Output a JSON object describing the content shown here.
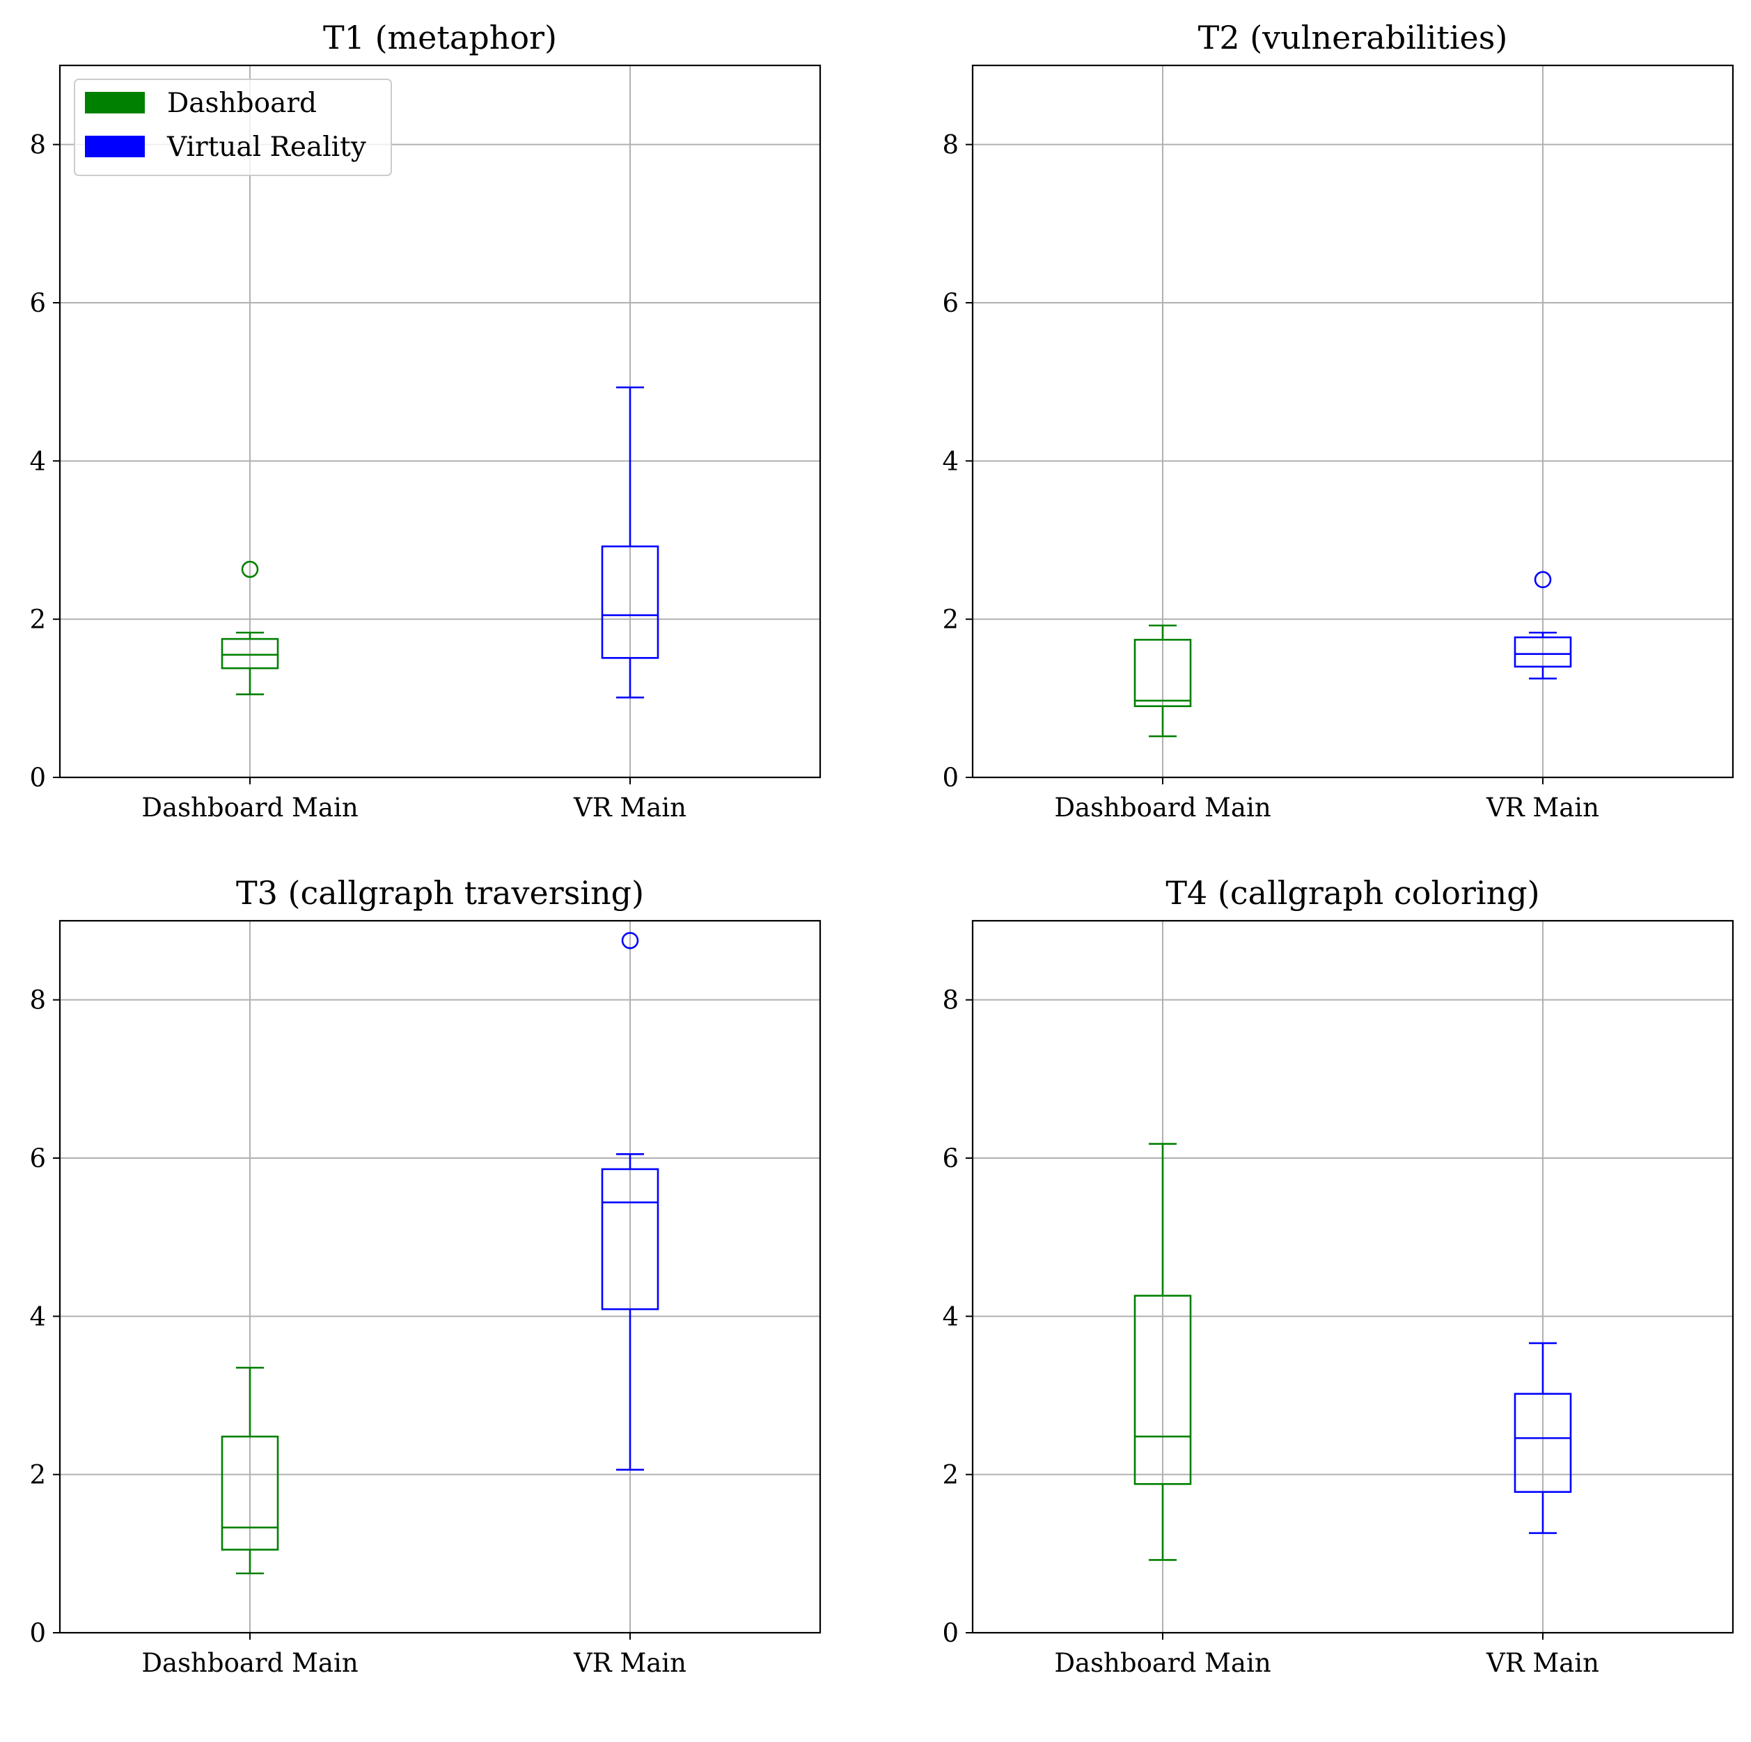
{
  "colors": {
    "dashboard": "#008000",
    "vr": "#0000ff",
    "grid": "#b0b0b0",
    "axis": "#000000"
  },
  "legend": {
    "placement": "upper-left",
    "entries": [
      {
        "label": "Dashboard",
        "color": "#008000"
      },
      {
        "label": "Virtual Reality",
        "color": "#0000ff"
      }
    ]
  },
  "chart_data": [
    {
      "type": "box",
      "title": "T1 (metaphor)",
      "categories": [
        "Dashboard Main",
        "VR Main"
      ],
      "ylim": [
        0,
        9
      ],
      "yticks": [
        0,
        2,
        4,
        6,
        8
      ],
      "grid": true,
      "has_legend": true,
      "boxes": [
        {
          "label": "Dashboard Main",
          "color": "#008000",
          "whisker_low": 1.05,
          "q1": 1.38,
          "median": 1.55,
          "q3": 1.75,
          "whisker_high": 1.83,
          "outliers": [
            2.63
          ]
        },
        {
          "label": "VR Main",
          "color": "#0000ff",
          "whisker_low": 1.01,
          "q1": 1.51,
          "median": 2.05,
          "q3": 2.92,
          "whisker_high": 4.93,
          "outliers": []
        }
      ]
    },
    {
      "type": "box",
      "title": "T2 (vulnerabilities)",
      "categories": [
        "Dashboard Main",
        "VR Main"
      ],
      "ylim": [
        0,
        9
      ],
      "yticks": [
        0,
        2,
        4,
        6,
        8
      ],
      "grid": true,
      "has_legend": false,
      "boxes": [
        {
          "label": "Dashboard Main",
          "color": "#008000",
          "whisker_low": 0.52,
          "q1": 0.9,
          "median": 0.97,
          "q3": 1.74,
          "whisker_high": 1.92,
          "outliers": []
        },
        {
          "label": "VR Main",
          "color": "#0000ff",
          "whisker_low": 1.25,
          "q1": 1.4,
          "median": 1.56,
          "q3": 1.77,
          "whisker_high": 1.83,
          "outliers": [
            2.5
          ]
        }
      ]
    },
    {
      "type": "box",
      "title": "T3 (callgraph traversing)",
      "categories": [
        "Dashboard Main",
        "VR Main"
      ],
      "ylim": [
        0,
        9
      ],
      "yticks": [
        0,
        2,
        4,
        6,
        8
      ],
      "grid": true,
      "has_legend": false,
      "boxes": [
        {
          "label": "Dashboard Main",
          "color": "#008000",
          "whisker_low": 0.75,
          "q1": 1.05,
          "median": 1.33,
          "q3": 2.48,
          "whisker_high": 3.35,
          "outliers": []
        },
        {
          "label": "VR Main",
          "color": "#0000ff",
          "whisker_low": 2.06,
          "q1": 4.09,
          "median": 5.44,
          "q3": 5.86,
          "whisker_high": 6.05,
          "outliers": [
            8.75
          ]
        }
      ]
    },
    {
      "type": "box",
      "title": "T4 (callgraph coloring)",
      "categories": [
        "Dashboard Main",
        "VR Main"
      ],
      "ylim": [
        0,
        9
      ],
      "yticks": [
        0,
        2,
        4,
        6,
        8
      ],
      "grid": true,
      "has_legend": false,
      "boxes": [
        {
          "label": "Dashboard Main",
          "color": "#008000",
          "whisker_low": 0.92,
          "q1": 1.88,
          "median": 2.48,
          "q3": 4.26,
          "whisker_high": 6.18,
          "outliers": []
        },
        {
          "label": "VR Main",
          "color": "#0000ff",
          "whisker_low": 1.26,
          "q1": 1.78,
          "median": 2.46,
          "q3": 3.02,
          "whisker_high": 3.66,
          "outliers": []
        }
      ]
    }
  ]
}
